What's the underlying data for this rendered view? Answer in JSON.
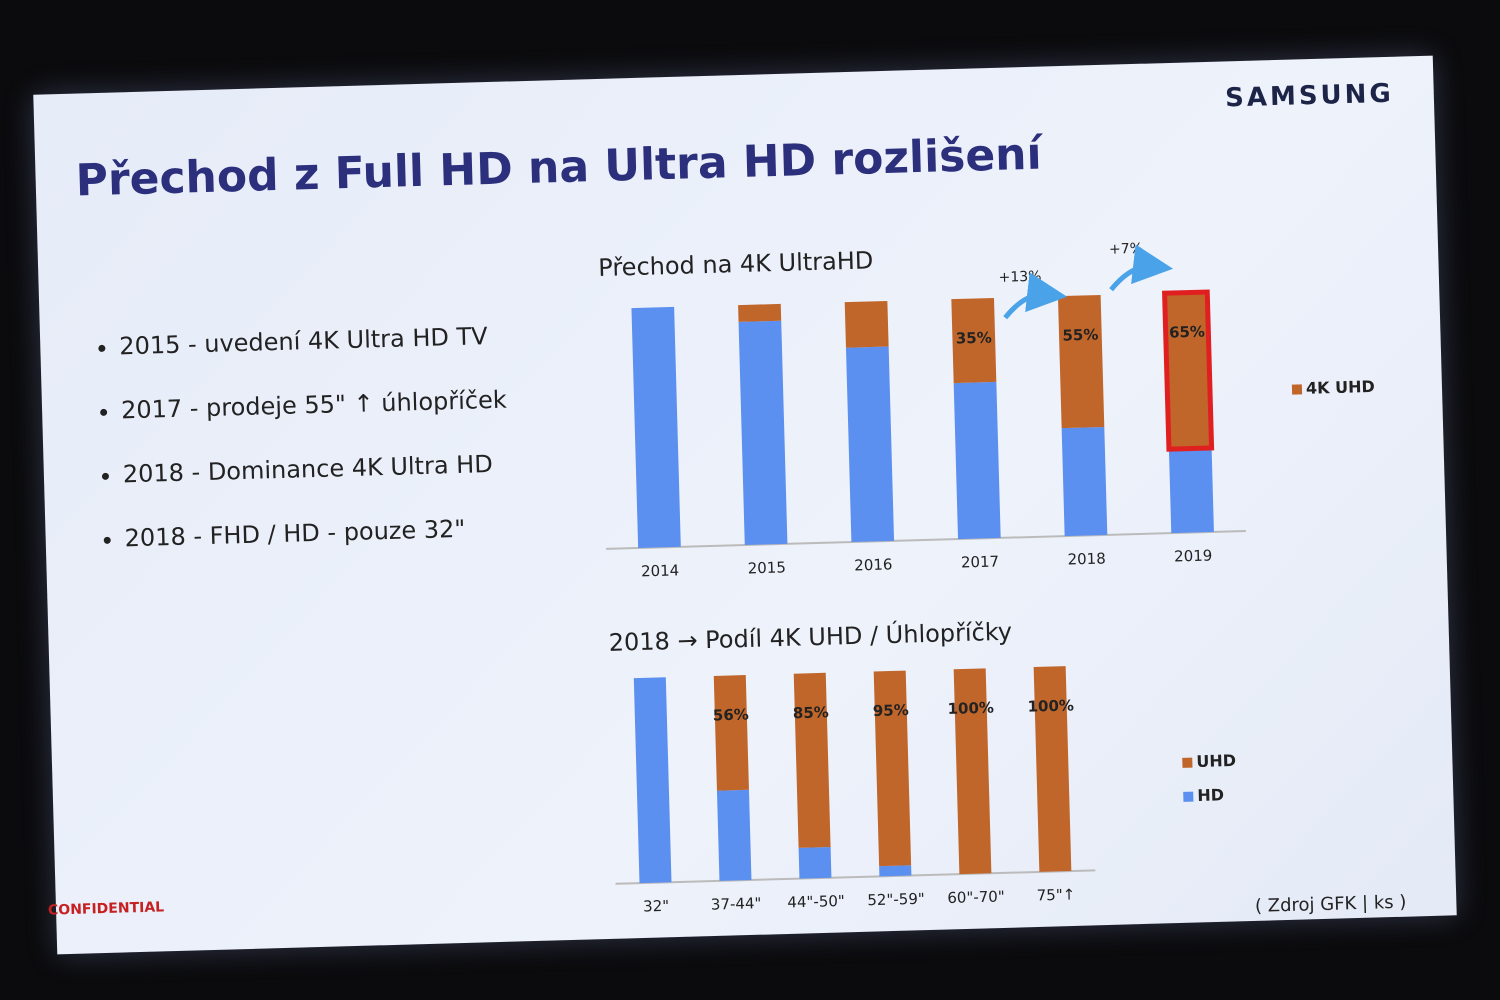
{
  "title": "Přechod z Full HD na Ultra HD rozlišení",
  "brand": "SAMSUNG",
  "bullets": [
    "2015 - uvedení 4K Ultra HD TV",
    "2017 -  prodeje 55\" ↑ úhlopříček",
    "2018 - Dominance 4K Ultra HD",
    "2018 - FHD / HD - pouze 32\""
  ],
  "confidential": "CONFIDENTIAL",
  "source": "( Zdroj GFK | ks )",
  "chart_data": [
    {
      "type": "bar",
      "stacked": true,
      "title": "Přechod na 4K UltraHD",
      "categories": [
        "2014",
        "2015",
        "2016",
        "2017",
        "2018",
        "2019"
      ],
      "series": [
        {
          "name": "4K UHD",
          "color": "#c0662a",
          "values": [
            0,
            7,
            19,
            35,
            55,
            65
          ],
          "value_labels": [
            null,
            null,
            null,
            "35%",
            "55%",
            "65%"
          ]
        },
        {
          "color": "#5b8ff0",
          "values": [
            100,
            93,
            81,
            65,
            45,
            35
          ]
        }
      ],
      "annotations": [
        "+13%",
        "+7%"
      ]
    },
    {
      "type": "bar",
      "stacked": true,
      "title": "2018 → Podíl 4K UHD / Úhlopříčky",
      "categories": [
        "32\"",
        "37-44\"",
        "44\"-50\"",
        "52\"-59\"",
        "60\"-70\"",
        "75\"↑"
      ],
      "series": [
        {
          "name": "UHD",
          "color": "#c0662a",
          "values": [
            0,
            56,
            85,
            95,
            100,
            100
          ],
          "value_labels": [
            null,
            "56%",
            "85%",
            "95%",
            "100%",
            "100%"
          ]
        },
        {
          "name": "HD",
          "color": "#5b8ff0",
          "values": [
            100,
            44,
            15,
            5,
            0,
            0
          ]
        }
      ]
    }
  ]
}
